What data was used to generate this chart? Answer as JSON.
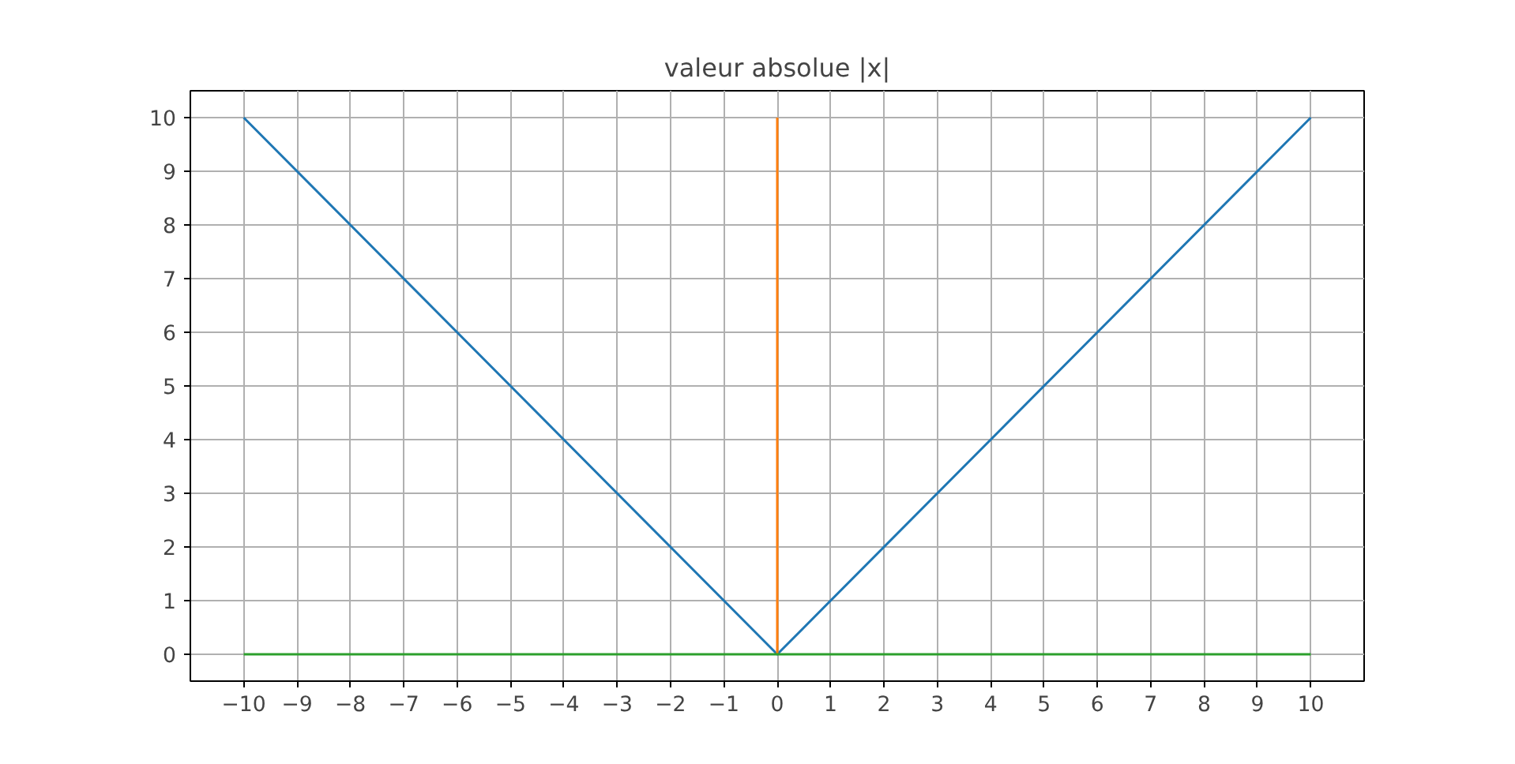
{
  "chart_data": {
    "type": "line",
    "title": "valeur absolue |x|",
    "series": [
      {
        "color": "#1f77b4",
        "x": [
          -10,
          0,
          10
        ],
        "values": [
          10,
          0,
          10
        ]
      },
      {
        "color": "#ff7f0e",
        "x": [
          0,
          0
        ],
        "values": [
          0,
          10
        ]
      },
      {
        "color": "#2ca02c",
        "x": [
          -10,
          10
        ],
        "values": [
          0,
          0
        ]
      }
    ],
    "xlim": [
      -11,
      11
    ],
    "ylim": [
      -0.5,
      10.5
    ],
    "xticks": [
      {
        "value": -10,
        "label": "−10"
      },
      {
        "value": -9,
        "label": "−9"
      },
      {
        "value": -8,
        "label": "−8"
      },
      {
        "value": -7,
        "label": "−7"
      },
      {
        "value": -6,
        "label": "−6"
      },
      {
        "value": -5,
        "label": "−5"
      },
      {
        "value": -4,
        "label": "−4"
      },
      {
        "value": -3,
        "label": "−3"
      },
      {
        "value": -2,
        "label": "−2"
      },
      {
        "value": -1,
        "label": "−1"
      },
      0,
      1,
      2,
      3,
      4,
      5,
      6,
      7,
      8,
      9,
      10
    ],
    "yticks": [
      0,
      1,
      2,
      3,
      4,
      5,
      6,
      7,
      8,
      9,
      10
    ],
    "grid": true,
    "marker": "none",
    "line_style": "solid"
  }
}
